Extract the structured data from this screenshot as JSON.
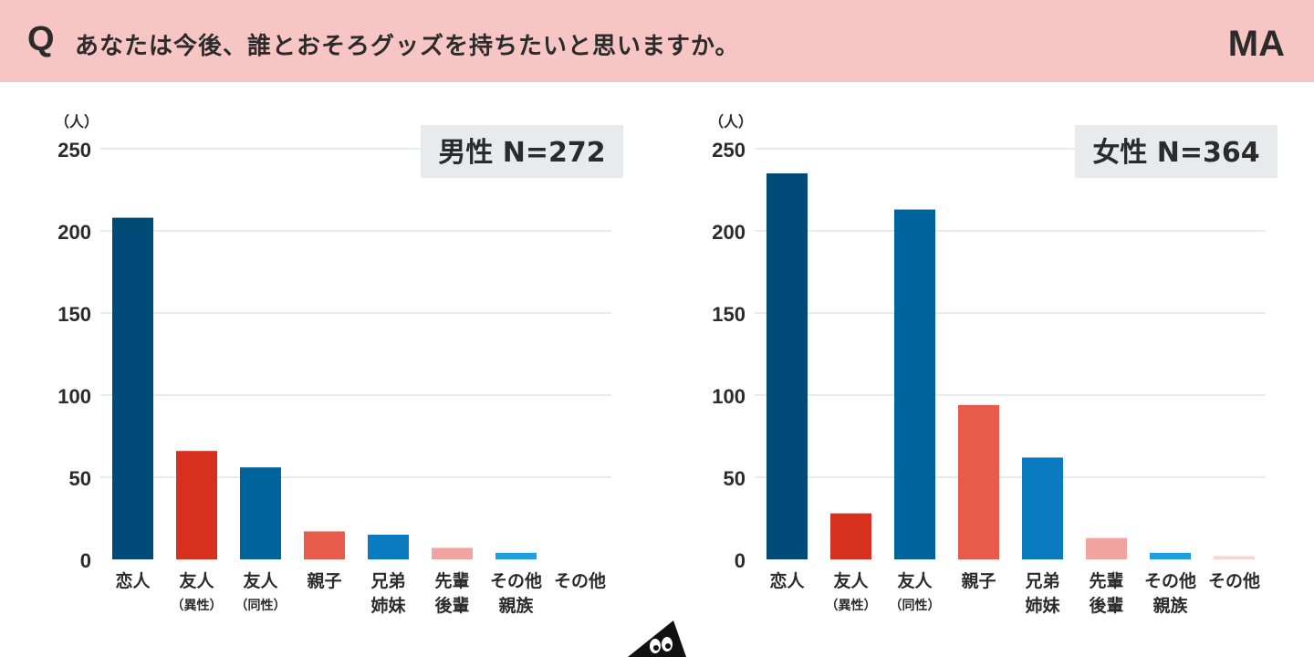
{
  "header": {
    "q_mark": "Q",
    "question": "あなたは今後、誰とおそろグッズを持ちたいと思いますか。",
    "answer_type": "MA"
  },
  "colors": {
    "header_bg": "#f7c6c4",
    "grid": "#dfe3e8",
    "label_box": "#e8ebee",
    "navy": "#004a78",
    "blue": "#00649c",
    "light_blue": "#0a7bc1",
    "sky": "#1f9ee0",
    "red": "#d8301f",
    "coral": "#e85a4c",
    "pink": "#f2a3a0",
    "pale_pink": "#f5d6d4"
  },
  "chart_data": [
    {
      "type": "bar",
      "title": "男性 N=272",
      "unit_label": "（人）",
      "ylim": [
        0,
        250
      ],
      "yticks": [
        0,
        50,
        100,
        150,
        200,
        250
      ],
      "grid": true,
      "categories": [
        {
          "line1": "恋人",
          "line2": ""
        },
        {
          "line1": "友人",
          "line2": "（異性）"
        },
        {
          "line1": "友人",
          "line2": "（同性）"
        },
        {
          "line1": "親子",
          "line2": ""
        },
        {
          "line1": "兄弟",
          "line2": "姉妹"
        },
        {
          "line1": "先輩",
          "line2": "後輩"
        },
        {
          "line1": "その他",
          "line2": "親族"
        },
        {
          "line1": "その他",
          "line2": ""
        }
      ],
      "values": [
        208,
        66,
        56,
        17,
        15,
        7,
        4,
        0
      ],
      "bar_colors": [
        "navy",
        "red",
        "blue",
        "coral",
        "light_blue",
        "pink",
        "sky",
        "pale_pink"
      ]
    },
    {
      "type": "bar",
      "title": "女性 N=364",
      "unit_label": "（人）",
      "ylim": [
        0,
        250
      ],
      "yticks": [
        0,
        50,
        100,
        150,
        200,
        250
      ],
      "grid": true,
      "categories": [
        {
          "line1": "恋人",
          "line2": ""
        },
        {
          "line1": "友人",
          "line2": "（異性）"
        },
        {
          "line1": "友人",
          "line2": "（同性）"
        },
        {
          "line1": "親子",
          "line2": ""
        },
        {
          "line1": "兄弟",
          "line2": "姉妹"
        },
        {
          "line1": "先輩",
          "line2": "後輩"
        },
        {
          "line1": "その他",
          "line2": "親族"
        },
        {
          "line1": "その他",
          "line2": ""
        }
      ],
      "values": [
        235,
        28,
        213,
        94,
        62,
        13,
        4,
        2
      ],
      "bar_colors": [
        "navy",
        "red",
        "blue",
        "coral",
        "light_blue",
        "pink",
        "sky",
        "pale_pink"
      ]
    }
  ]
}
